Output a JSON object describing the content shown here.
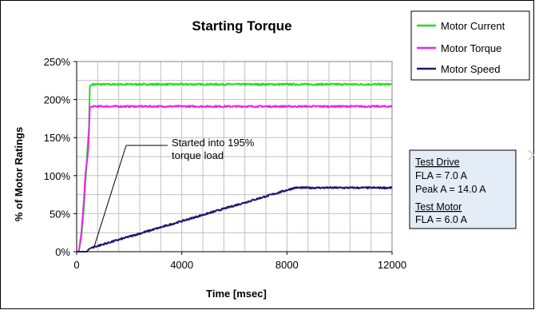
{
  "chart_data": {
    "type": "line",
    "title": "Starting Torque",
    "xlabel": "Time [msec]",
    "ylabel": "% of Motor Ratings",
    "xlim": [
      0,
      12000
    ],
    "ylim": [
      0,
      250
    ],
    "x_ticks": [
      0,
      4000,
      8000,
      12000
    ],
    "y_ticks": [
      0,
      50,
      100,
      150,
      200,
      250
    ],
    "y_tick_labels": [
      "0%",
      "50%",
      "100%",
      "150%",
      "200%",
      "250%"
    ],
    "x_tick_labels": [
      "0",
      "4000",
      "8000",
      "12000"
    ],
    "grid": true,
    "legend_position": "top-right",
    "series": [
      {
        "name": "Motor Current",
        "color": "#22dd22",
        "points": [
          [
            0,
            0
          ],
          [
            80,
            0
          ],
          [
            180,
            20
          ],
          [
            280,
            60
          ],
          [
            350,
            100
          ],
          [
            400,
            130
          ],
          [
            440,
            150
          ],
          [
            470,
            165
          ],
          [
            500,
            218
          ],
          [
            600,
            220
          ],
          [
            12000,
            220
          ]
        ]
      },
      {
        "name": "Motor Torque",
        "color": "#ee22ee",
        "points": [
          [
            0,
            0
          ],
          [
            80,
            0
          ],
          [
            180,
            25
          ],
          [
            270,
            65
          ],
          [
            340,
            105
          ],
          [
            400,
            120
          ],
          [
            440,
            135
          ],
          [
            470,
            160
          ],
          [
            500,
            190
          ],
          [
            600,
            191
          ],
          [
            12000,
            191
          ]
        ]
      },
      {
        "name": "Motor Speed",
        "color": "#1a1a6e",
        "points": [
          [
            0,
            0
          ],
          [
            400,
            0
          ],
          [
            450,
            3
          ],
          [
            550,
            5
          ],
          [
            8300,
            84
          ],
          [
            12000,
            84
          ]
        ]
      }
    ],
    "annotations": [
      {
        "lines": [
          "Started into 195%",
          "torque load"
        ],
        "points_to": [
          400,
          3
        ]
      }
    ]
  },
  "note": {
    "drive_heading": "Test Drive",
    "drive_fla": "FLA = 7.0 A",
    "drive_peak": "Peak A = 14.0 A",
    "motor_heading": "Test Motor",
    "motor_fla": "FLA = 6.0 A"
  },
  "colors": {
    "plot_background": "#ffffff",
    "grid": "#c0c0c0",
    "note_background": "#e4ecf7",
    "frame": "#000000"
  }
}
